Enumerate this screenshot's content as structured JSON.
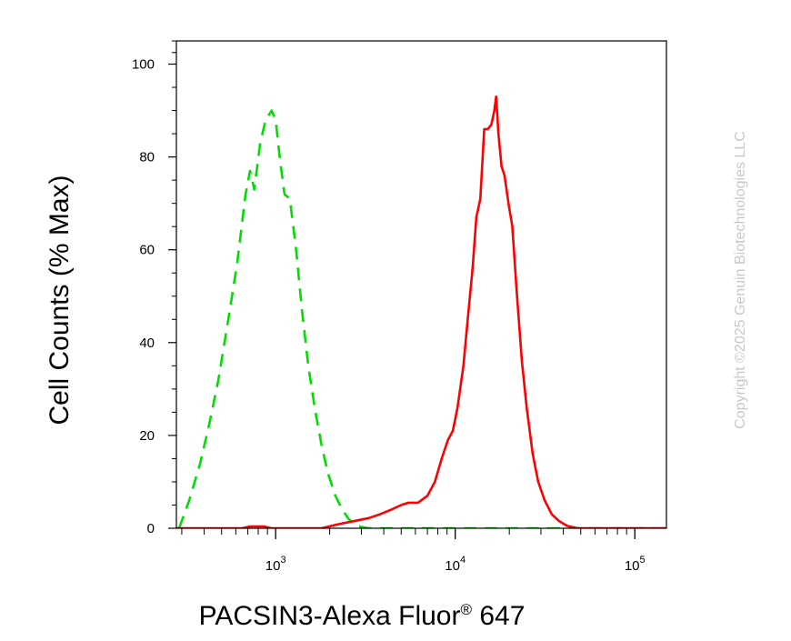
{
  "chart_data": {
    "type": "line",
    "title": "",
    "xlabel": "PACSIN3-Alexa Fluor® 647",
    "xlabel_parts": {
      "main": "PACSIN3-Alexa Fluor",
      "sup": "®",
      "tail": " 647"
    },
    "ylabel": "Cell Counts (% Max)",
    "x_scale": "log",
    "xlim": [
      280,
      150000
    ],
    "ylim": [
      0,
      105
    ],
    "x_ticks": [
      {
        "value": 1000,
        "base": "10",
        "exp": "3"
      },
      {
        "value": 10000,
        "base": "10",
        "exp": "4"
      },
      {
        "value": 100000,
        "base": "10",
        "exp": "5"
      }
    ],
    "y_ticks": [
      0,
      20,
      40,
      60,
      80,
      100
    ],
    "grid": false,
    "legend": "none",
    "watermark": "Copyright ©2025 Genuin Biotechnologies LLC",
    "series": [
      {
        "color": "#00dd00",
        "style": "dashed",
        "points": [
          [
            290,
            0
          ],
          [
            330,
            6
          ],
          [
            380,
            14
          ],
          [
            430,
            23
          ],
          [
            480,
            32
          ],
          [
            540,
            44
          ],
          [
            610,
            57
          ],
          [
            680,
            72
          ],
          [
            720,
            77
          ],
          [
            760,
            73
          ],
          [
            820,
            83
          ],
          [
            880,
            88
          ],
          [
            950,
            90
          ],
          [
            1000,
            88
          ],
          [
            1060,
            79
          ],
          [
            1120,
            72
          ],
          [
            1200,
            71
          ],
          [
            1300,
            60
          ],
          [
            1400,
            47
          ],
          [
            1520,
            35
          ],
          [
            1650,
            26
          ],
          [
            1800,
            18
          ],
          [
            1950,
            12
          ],
          [
            2150,
            7
          ],
          [
            2350,
            4
          ],
          [
            2550,
            2
          ],
          [
            2800,
            0.5
          ],
          [
            3300,
            0
          ],
          [
            150000,
            0
          ]
        ]
      },
      {
        "color": "#ff0000",
        "style": "solid",
        "points": [
          [
            280,
            0
          ],
          [
            650,
            0
          ],
          [
            720,
            0.4
          ],
          [
            860,
            0.4
          ],
          [
            950,
            0
          ],
          [
            1800,
            0
          ],
          [
            2200,
            0.8
          ],
          [
            2700,
            1.5
          ],
          [
            3300,
            2.2
          ],
          [
            3800,
            3
          ],
          [
            4400,
            4
          ],
          [
            5000,
            5
          ],
          [
            5500,
            5.5
          ],
          [
            6200,
            5.5
          ],
          [
            7000,
            7
          ],
          [
            7700,
            10
          ],
          [
            8400,
            15
          ],
          [
            9100,
            19
          ],
          [
            9700,
            21
          ],
          [
            10300,
            26
          ],
          [
            11100,
            35
          ],
          [
            11800,
            46
          ],
          [
            12500,
            56
          ],
          [
            13100,
            67
          ],
          [
            13800,
            71
          ],
          [
            14500,
            86
          ],
          [
            15200,
            86
          ],
          [
            15900,
            87
          ],
          [
            16500,
            90
          ],
          [
            16900,
            93
          ],
          [
            17400,
            85
          ],
          [
            18100,
            78
          ],
          [
            18800,
            76
          ],
          [
            19800,
            70
          ],
          [
            20800,
            65
          ],
          [
            22000,
            51
          ],
          [
            23500,
            36
          ],
          [
            25000,
            26
          ],
          [
            27000,
            16
          ],
          [
            29000,
            10
          ],
          [
            31500,
            6
          ],
          [
            34500,
            3
          ],
          [
            38000,
            1.5
          ],
          [
            42000,
            0.5
          ],
          [
            48000,
            0
          ],
          [
            150000,
            0
          ]
        ]
      }
    ]
  }
}
